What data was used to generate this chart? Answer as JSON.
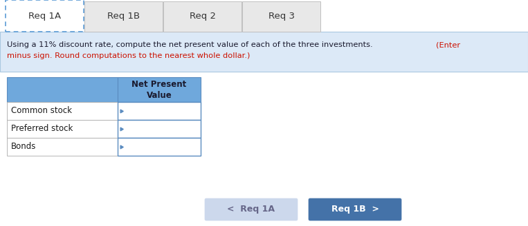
{
  "tabs": [
    "Req 1A",
    "Req 1B",
    "Req 2",
    "Req 3"
  ],
  "active_tab": 0,
  "instruction_line1_black": "Using a 11% discount rate, compute the net present value of each of the three investments. ",
  "instruction_line1_red": "(Enter",
  "instruction_line2_red": "minus sign. Round computations to the nearest whole dollar.)",
  "table_header_col1": "Net Present\nValue",
  "table_rows": [
    "Common stock",
    "Preferred stock",
    "Bonds"
  ],
  "header_bg": "#6fa8dc",
  "header_text_color": "#1a1a2e",
  "row_label_color": "#1a1a1a",
  "instruction_bg": "#dce9f7",
  "instruction_text_color": "#1a1a2e",
  "instruction_red_color": "#cc1100",
  "tab_active_bg": "#ffffff",
  "tab_active_border": "#5b9bd5",
  "tab_inactive_bg": "#e8e8e8",
  "tab_border_color": "#c0c0c0",
  "tab_text_color": "#333333",
  "btn_left_bg": "#ccd8ec",
  "btn_left_text": "<  Req 1A",
  "btn_left_text_color": "#666688",
  "btn_right_bg": "#4472a8",
  "btn_right_text": "Req 1B  >",
  "btn_right_text_color": "#ffffff",
  "bg_color": "#ffffff",
  "table_border_color": "#5b8cc0",
  "row_divider_color": "#aaaaaa",
  "fig_width": 7.63,
  "fig_height": 3.28
}
